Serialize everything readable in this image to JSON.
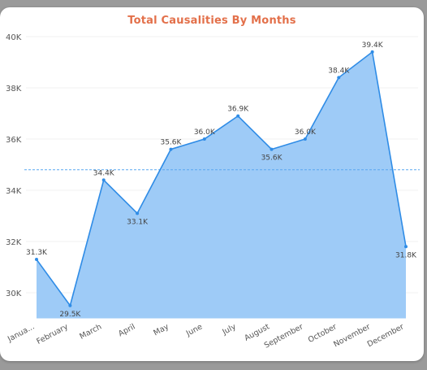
{
  "chart_data": {
    "type": "area",
    "title": "Total Causalities By Months",
    "xlabel": "",
    "ylabel": "",
    "categories": [
      "Janua...",
      "February",
      "March",
      "April",
      "May",
      "June",
      "July",
      "August",
      "September",
      "October",
      "November",
      "December"
    ],
    "values": [
      31300,
      29500,
      34400,
      33100,
      35600,
      36000,
      36900,
      35600,
      36000,
      38400,
      39400,
      31800
    ],
    "data_labels": [
      "31.3K",
      "29.5K",
      "34.4K",
      "33.1K",
      "35.6K",
      "36.0K",
      "36.9K",
      "35.6K",
      "36.0K",
      "38.4K",
      "39.4K",
      "31.8K"
    ],
    "y_ticks": [
      30000,
      32000,
      34000,
      36000,
      38000,
      40000
    ],
    "y_tick_labels": [
      "30K",
      "32K",
      "34K",
      "36K",
      "38K",
      "40K"
    ],
    "ylim": [
      29000,
      40000
    ],
    "average_line": 34800,
    "grid": true,
    "legend": "none",
    "colors": {
      "fill": "#9ecbf7",
      "line": "#2f8ce6",
      "average": "#5aa8f0",
      "title": "#e3704a"
    }
  }
}
